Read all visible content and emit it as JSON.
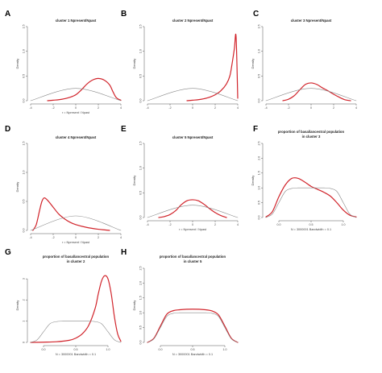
{
  "chart_data": [
    {
      "panel": "A",
      "title": "cluster 1 Npresent/Npast",
      "title2": "",
      "type": "line",
      "ylabel": "Density",
      "xlabel": "r = Npresent / Npast",
      "xlabel2": "",
      "xlim": [
        -4,
        4
      ],
      "ylim": [
        0,
        1.5
      ],
      "xticks": [
        -4,
        -2,
        0,
        2,
        4
      ],
      "yticks": [
        0.0,
        0.5,
        1.0,
        1.5
      ],
      "series": [
        {
          "color": "#d1242b",
          "x": [
            -2.5,
            -2,
            -1.5,
            -1,
            -0.5,
            0,
            0.5,
            1,
            1.5,
            2,
            2.5,
            3,
            3.3,
            3.6,
            4
          ],
          "y": [
            0,
            0.01,
            0.02,
            0.04,
            0.07,
            0.12,
            0.22,
            0.34,
            0.42,
            0.45,
            0.42,
            0.32,
            0.18,
            0.06,
            0.01
          ]
        },
        {
          "color": "#888888",
          "x": [
            -4,
            0,
            4
          ],
          "y": [
            0,
            0.25,
            0
          ]
        }
      ]
    },
    {
      "panel": "B",
      "title": "cluster 2 Npresent/Npast",
      "title2": "",
      "type": "line",
      "ylabel": "Density",
      "xlabel": "",
      "xlabel2": "",
      "xlim": [
        -4,
        4
      ],
      "ylim": [
        0,
        1.5
      ],
      "xticks": [
        -4,
        -2,
        0,
        2,
        4
      ],
      "yticks": [
        0.0,
        0.5,
        1.0,
        1.5
      ],
      "series": [
        {
          "color": "#d1242b",
          "x": [
            -0.5,
            0,
            0.5,
            1,
            1.5,
            2,
            2.5,
            3,
            3.3,
            3.5,
            3.7,
            3.85,
            4
          ],
          "y": [
            0,
            0.01,
            0.02,
            0.04,
            0.07,
            0.12,
            0.2,
            0.34,
            0.5,
            0.75,
            1.05,
            1.3,
            0.05
          ]
        },
        {
          "color": "#888888",
          "x": [
            -4,
            0,
            4
          ],
          "y": [
            0,
            0.25,
            0
          ]
        }
      ]
    },
    {
      "panel": "C",
      "title": "cluster 3 Npresent/Npast",
      "title2": "",
      "type": "line",
      "ylabel": "Density",
      "xlabel": "",
      "xlabel2": "",
      "xlim": [
        -4,
        4
      ],
      "ylim": [
        0,
        1.5
      ],
      "xticks": [
        -4,
        -2,
        0,
        2,
        4
      ],
      "yticks": [
        0.0,
        0.5,
        1.0,
        1.5
      ],
      "series": [
        {
          "color": "#d1242b",
          "x": [
            -2.5,
            -2,
            -1.5,
            -1,
            -0.5,
            0,
            0.5,
            1,
            1.5,
            2,
            2.5,
            3,
            3.5
          ],
          "y": [
            0,
            0.03,
            0.1,
            0.22,
            0.33,
            0.36,
            0.33,
            0.26,
            0.2,
            0.13,
            0.07,
            0.02,
            0
          ]
        },
        {
          "color": "#888888",
          "x": [
            -4,
            0,
            4
          ],
          "y": [
            0,
            0.25,
            0
          ]
        }
      ]
    },
    {
      "panel": "D",
      "title": "cluster 4 Npresent/Npast",
      "title2": "",
      "type": "line",
      "ylabel": "Density",
      "xlabel": "r = Npresent / Npast",
      "xlabel2": "",
      "xlim": [
        -4,
        4
      ],
      "ylim": [
        0,
        1.5
      ],
      "xticks": [
        -4,
        -2,
        0,
        2,
        4
      ],
      "yticks": [
        0.0,
        0.5,
        1.0,
        1.5
      ],
      "series": [
        {
          "color": "#d1242b",
          "x": [
            -3.8,
            -3.5,
            -3.2,
            -3,
            -2.8,
            -2.5,
            -2,
            -1.5,
            -1,
            -0.5,
            0,
            1,
            2,
            3
          ],
          "y": [
            0,
            0.1,
            0.35,
            0.5,
            0.56,
            0.52,
            0.4,
            0.28,
            0.2,
            0.14,
            0.1,
            0.05,
            0.02,
            0
          ]
        },
        {
          "color": "#888888",
          "x": [
            -4,
            0,
            4
          ],
          "y": [
            0,
            0.25,
            0
          ]
        }
      ]
    },
    {
      "panel": "E",
      "title": "cluster 5 Npresent/Npast",
      "title2": "",
      "type": "line",
      "ylabel": "Density",
      "xlabel": "r = Npresent / Npast",
      "xlabel2": "",
      "xlim": [
        -4,
        4
      ],
      "ylim": [
        0,
        1.5
      ],
      "xticks": [
        -4,
        -2,
        0,
        2,
        4
      ],
      "yticks": [
        0.0,
        0.5,
        1.0,
        1.5
      ],
      "series": [
        {
          "color": "#d1242b",
          "x": [
            -3,
            -2.5,
            -2,
            -1.5,
            -1,
            -0.5,
            0,
            0.5,
            1,
            1.5,
            2,
            2.5,
            3
          ],
          "y": [
            0,
            0.02,
            0.06,
            0.14,
            0.26,
            0.34,
            0.36,
            0.34,
            0.27,
            0.18,
            0.1,
            0.04,
            0
          ]
        },
        {
          "color": "#888888",
          "x": [
            -4,
            0,
            4
          ],
          "y": [
            0,
            0.25,
            0
          ]
        }
      ]
    },
    {
      "panel": "F",
      "title": "proportion of basal/ancestral population",
      "title2": "in cluster 3",
      "type": "line",
      "ylabel": "Density",
      "xlabel": "N = 3000001",
      "xlabel2": "Bandwidth = 0.1",
      "xlim": [
        -0.2,
        1.2
      ],
      "ylim": [
        0,
        2.5
      ],
      "xticks": [
        0.0,
        0.5,
        1.0
      ],
      "yticks": [
        0.0,
        0.5,
        1.0,
        1.5,
        2.0,
        2.5
      ],
      "series": [
        {
          "color": "#d1242b",
          "x": [
            -0.2,
            -0.1,
            0,
            0.1,
            0.2,
            0.3,
            0.4,
            0.5,
            0.6,
            0.7,
            0.8,
            0.9,
            1,
            1.1,
            1.2
          ],
          "y": [
            0.02,
            0.2,
            0.7,
            1.1,
            1.32,
            1.32,
            1.2,
            1.05,
            0.95,
            0.85,
            0.72,
            0.5,
            0.25,
            0.08,
            0.02
          ]
        },
        {
          "color": "#888888",
          "x": [
            -0.2,
            -0.1,
            0,
            0.1,
            0.2,
            0.3,
            0.5,
            0.7,
            0.8,
            0.9,
            1,
            1.1,
            1.2
          ],
          "y": [
            0,
            0.12,
            0.5,
            0.88,
            0.98,
            1.0,
            1.0,
            1.0,
            0.98,
            0.88,
            0.5,
            0.12,
            0
          ]
        }
      ]
    },
    {
      "panel": "G",
      "title": "proportion of basal/ancestral population",
      "title2": "in cluster 2",
      "type": "line",
      "ylabel": "Density",
      "xlabel": "N = 3000001",
      "xlabel2": "Bandwidth = 0.1",
      "xlim": [
        -0.2,
        1.2
      ],
      "ylim": [
        0,
        3.5
      ],
      "xticks": [
        0.0,
        0.5,
        1.0
      ],
      "yticks": [
        0,
        1,
        2,
        3
      ],
      "series": [
        {
          "color": "#d1242b",
          "x": [
            -0.2,
            0,
            0.2,
            0.4,
            0.5,
            0.6,
            0.7,
            0.8,
            0.85,
            0.9,
            0.95,
            1.0,
            1.05,
            1.1,
            1.15,
            1.2
          ],
          "y": [
            0,
            0.01,
            0.03,
            0.1,
            0.2,
            0.4,
            0.8,
            1.6,
            2.3,
            2.9,
            3.15,
            3.0,
            2.3,
            1.2,
            0.4,
            0.05
          ]
        },
        {
          "color": "#888888",
          "x": [
            -0.2,
            -0.1,
            0,
            0.1,
            0.2,
            0.3,
            0.5,
            0.7,
            0.8,
            0.9,
            1,
            1.1,
            1.2
          ],
          "y": [
            0,
            0.12,
            0.5,
            0.88,
            0.98,
            1.0,
            1.0,
            1.0,
            0.98,
            0.88,
            0.5,
            0.12,
            0
          ]
        }
      ]
    },
    {
      "panel": "H",
      "title": "proportion of basal/ancestral population",
      "title2": "in cluster 5",
      "type": "line",
      "ylabel": "Density",
      "xlabel": "N = 3000001",
      "xlabel2": "Bandwidth = 0.1",
      "xlim": [
        -0.2,
        1.2
      ],
      "ylim": [
        0,
        2.5
      ],
      "xticks": [
        0.0,
        0.5,
        1.0
      ],
      "yticks": [
        0.0,
        0.5,
        1.0,
        1.5,
        2.0,
        2.5
      ],
      "series": [
        {
          "color": "#d1242b",
          "x": [
            -0.2,
            -0.1,
            0,
            0.1,
            0.2,
            0.3,
            0.5,
            0.7,
            0.8,
            0.9,
            1,
            1.1,
            1.2
          ],
          "y": [
            0,
            0.14,
            0.55,
            0.95,
            1.07,
            1.1,
            1.12,
            1.1,
            1.06,
            0.93,
            0.55,
            0.14,
            0
          ]
        },
        {
          "color": "#888888",
          "x": [
            -0.2,
            -0.1,
            0,
            0.1,
            0.2,
            0.3,
            0.5,
            0.7,
            0.8,
            0.9,
            1,
            1.1,
            1.2
          ],
          "y": [
            0,
            0.12,
            0.5,
            0.88,
            0.98,
            1.0,
            1.0,
            1.0,
            0.98,
            0.88,
            0.5,
            0.12,
            0
          ]
        }
      ]
    }
  ]
}
